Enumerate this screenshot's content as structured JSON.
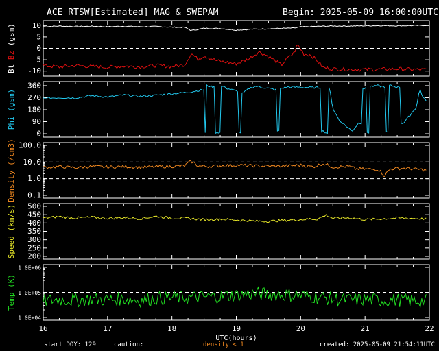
{
  "header": {
    "title": "ACE RTSW[Estimated] MAG & SWEPAM",
    "begin": "Begin: 2025-05-09 16:00:00UTC"
  },
  "footer": {
    "start_doy": "start DOY: 129",
    "caution": "caution:",
    "density_note": "density < 1",
    "created": "created: 2025-05-09 21:54:11UTC"
  },
  "colors": {
    "white": "#ffffff",
    "bz": "#e01010",
    "phi": "#22c8ee",
    "density": "#f08820",
    "speed": "#e6e628",
    "temp": "#22e022",
    "dash": "#ffffff"
  },
  "chart_data": [
    {
      "type": "line",
      "panel": "mag",
      "ylabel_parts": [
        "Bt",
        "Bz",
        "(gsm)"
      ],
      "ylim": [
        -11,
        11
      ],
      "yticks": [
        -10,
        -5,
        0,
        5,
        10
      ],
      "ytick_labels": [
        "-10",
        "-5",
        "0",
        "5",
        "10"
      ],
      "dashed_lines": [
        0
      ],
      "series": [
        {
          "name": "Bt",
          "x": [
            16.0,
            16.25,
            16.5,
            16.75,
            17.0,
            17.25,
            17.5,
            17.75,
            18.0,
            18.2,
            18.3,
            18.5,
            18.75,
            19.0,
            19.25,
            19.5,
            19.75,
            19.9,
            20.0,
            20.2,
            20.5,
            20.75,
            21.0,
            21.25,
            21.5,
            21.75,
            21.95
          ],
          "values": [
            9.5,
            9.8,
            9.6,
            9.7,
            9.5,
            9.7,
            9.5,
            9.6,
            9.3,
            9.2,
            7.8,
            8.8,
            8.7,
            8.0,
            8.4,
            8.6,
            8.8,
            8.9,
            9.4,
            9.6,
            9.8,
            9.8,
            9.9,
            10.0,
            9.9,
            10.0,
            10.1
          ]
        },
        {
          "name": "Bz",
          "x": [
            16.0,
            16.25,
            16.5,
            16.75,
            17.0,
            17.25,
            17.5,
            17.75,
            18.0,
            18.2,
            18.3,
            18.4,
            18.5,
            18.7,
            19.0,
            19.2,
            19.35,
            19.5,
            19.7,
            19.8,
            19.9,
            19.95,
            20.05,
            20.15,
            20.25,
            20.35,
            20.5,
            20.75,
            21.0,
            21.25,
            21.5,
            21.75,
            21.95
          ],
          "values": [
            -7.6,
            -8.2,
            -7.5,
            -8.0,
            -8.3,
            -7.8,
            -8.1,
            -7.5,
            -8.0,
            -7.2,
            -2.2,
            -4.8,
            -3.2,
            -5.5,
            -6.8,
            -4.5,
            -1.5,
            -3.5,
            -7.4,
            -4.2,
            -2.0,
            1.8,
            -2.5,
            -2.8,
            -5.2,
            -8.5,
            -9.0,
            -9.2,
            -9.3,
            -9.2,
            -9.0,
            -9.3,
            -9.4
          ]
        }
      ]
    },
    {
      "type": "line",
      "panel": "phi",
      "ylabel": "Phi (gsm)",
      "ylim": [
        -5,
        370
      ],
      "yticks": [
        0,
        90,
        180,
        270,
        360
      ],
      "ytick_labels": [
        "0",
        "90",
        "180",
        "270",
        "360"
      ],
      "series": [
        {
          "name": "Phi",
          "x": [
            16.0,
            16.25,
            16.5,
            16.75,
            17.0,
            17.25,
            17.5,
            17.75,
            18.0,
            18.25,
            18.5,
            18.52,
            18.55,
            18.65,
            18.7,
            18.8,
            18.85,
            19.0,
            19.05,
            19.1,
            19.2,
            19.3,
            19.5,
            19.6,
            19.65,
            19.7,
            19.8,
            20.0,
            20.3,
            20.35,
            20.4,
            20.45,
            20.5,
            20.6,
            20.7,
            20.8,
            20.9,
            21.0,
            21.05,
            21.1,
            21.2,
            21.3,
            21.35,
            21.4,
            21.5,
            21.6,
            21.7,
            21.8,
            21.85,
            21.9,
            21.95
          ],
          "values": [
            265,
            270,
            268,
            285,
            275,
            290,
            280,
            288,
            300,
            310,
            330,
            5,
            360,
            350,
            10,
            355,
            340,
            320,
            10,
            300,
            340,
            355,
            340,
            330,
            20,
            340,
            350,
            348,
            345,
            20,
            5,
            340,
            190,
            100,
            60,
            20,
            80,
            340,
            10,
            355,
            360,
            350,
            10,
            360,
            350,
            80,
            140,
            200,
            340,
            270,
            250
          ]
        }
      ]
    },
    {
      "type": "line",
      "panel": "density",
      "ylabel": "Density (/cm3)",
      "log": true,
      "ylim": [
        0.1,
        100
      ],
      "yticks": [
        0.1,
        1.0,
        10.0,
        100.0
      ],
      "ytick_labels": [
        "0.1",
        "1.0",
        "10.0",
        "100.0"
      ],
      "dashed_lines": [
        1,
        10
      ],
      "series": [
        {
          "name": "Density",
          "x": [
            16.0,
            16.25,
            16.5,
            16.75,
            17.0,
            17.25,
            17.5,
            17.75,
            18.0,
            18.2,
            18.3,
            18.4,
            18.6,
            18.8,
            19.0,
            19.2,
            19.4,
            19.6,
            19.8,
            20.0,
            20.2,
            20.35,
            20.5,
            20.75,
            20.85,
            21.0,
            21.2,
            21.3,
            21.4,
            21.6,
            21.8,
            21.95
          ],
          "values": [
            4.8,
            5.3,
            4.6,
            5.5,
            5.0,
            5.4,
            4.9,
            5.2,
            5.5,
            6.0,
            11.0,
            5.8,
            5.5,
            6.2,
            6.5,
            6.0,
            5.8,
            5.6,
            5.9,
            6.5,
            5.2,
            8.0,
            5.0,
            5.5,
            4.0,
            3.8,
            3.6,
            1.3,
            3.9,
            4.3,
            3.7,
            3.3
          ]
        }
      ]
    },
    {
      "type": "line",
      "panel": "speed",
      "ylabel": "Speed (km/s)",
      "ylim": [
        200,
        500
      ],
      "yticks": [
        200,
        250,
        300,
        350,
        400,
        450,
        500
      ],
      "ytick_labels": [
        "200",
        "250",
        "300",
        "350",
        "400",
        "450",
        "500"
      ],
      "series": [
        {
          "name": "Speed",
          "x": [
            16.0,
            16.25,
            16.5,
            16.75,
            17.0,
            17.25,
            17.5,
            17.75,
            18.0,
            18.25,
            18.5,
            18.75,
            19.0,
            19.25,
            19.5,
            19.75,
            20.0,
            20.15,
            20.25,
            20.4,
            20.5,
            20.75,
            21.0,
            21.25,
            21.5,
            21.75,
            21.95
          ],
          "values": [
            430,
            438,
            430,
            435,
            428,
            432,
            426,
            440,
            430,
            428,
            420,
            424,
            418,
            412,
            410,
            416,
            420,
            425,
            422,
            448,
            428,
            432,
            420,
            425,
            430,
            428,
            424
          ]
        }
      ]
    },
    {
      "type": "line",
      "panel": "temp",
      "ylabel": "Temp (K)",
      "log": true,
      "ylim": [
        10000,
        1000000
      ],
      "yticks": [
        10000,
        100000,
        1000000
      ],
      "ytick_labels": [
        "1.0E+04",
        "1.0E+05",
        "1.0E+06"
      ],
      "dashed_lines": [
        100000
      ],
      "series": [
        {
          "name": "Temp",
          "x": [
            16.0,
            16.25,
            16.5,
            16.75,
            17.0,
            17.25,
            17.5,
            17.75,
            18.0,
            18.25,
            18.5,
            18.75,
            19.0,
            19.25,
            19.5,
            19.75,
            20.0,
            20.25,
            20.5,
            20.75,
            21.0,
            21.25,
            21.5,
            21.75,
            21.95
          ],
          "values": [
            45000,
            52000,
            48000,
            55000,
            50000,
            56000,
            49000,
            58000,
            60000,
            62000,
            65000,
            70000,
            78000,
            90000,
            85000,
            80000,
            75000,
            65000,
            55000,
            50000,
            52000,
            48000,
            50000,
            46000,
            45000
          ]
        }
      ]
    }
  ],
  "x_axis": {
    "xlim": [
      16,
      22
    ],
    "ticks": [
      16,
      17,
      18,
      19,
      20,
      21,
      22
    ],
    "tick_labels": [
      "16",
      "17",
      "18",
      "19",
      "20",
      "21",
      "22"
    ],
    "label": "UTC(hours)"
  }
}
